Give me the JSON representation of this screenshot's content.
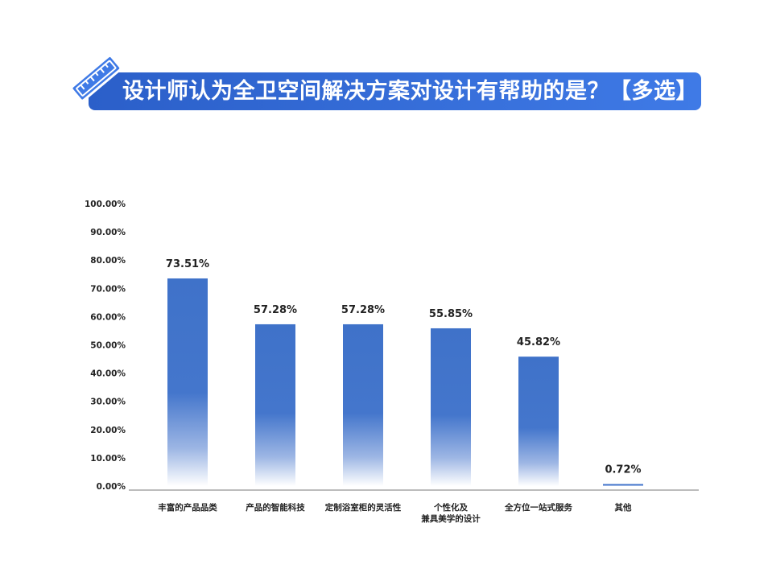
{
  "header": {
    "title": "设计师认为全卫空间解决方案对设计有帮助的是？【多选】",
    "icon": "ruler-icon",
    "accent_color": "#2f66d6"
  },
  "chart_data": {
    "type": "bar",
    "title": "设计师认为全卫空间解决方案对设计有帮助的是？【多选】",
    "categories": [
      [
        "丰富的产品品类"
      ],
      [
        "产品的智能科技"
      ],
      [
        "定制浴室柜的灵活性"
      ],
      [
        "个性化及",
        "兼具美学的设计"
      ],
      [
        "全方位一站式服务"
      ],
      [
        "其他"
      ]
    ],
    "values": [
      73.51,
      57.28,
      57.28,
      55.85,
      45.82,
      0.72
    ],
    "value_labels": [
      "73.51%",
      "57.28%",
      "57.28%",
      "55.85%",
      "45.82%",
      "0.72%"
    ],
    "yticks": [
      "0.00%",
      "10.00%",
      "20.00%",
      "30.00%",
      "40.00%",
      "50.00%",
      "60.00%",
      "70.00%",
      "80.00%",
      "90.00%",
      "100.00%"
    ],
    "ylim": [
      0,
      100
    ],
    "xlabel": "",
    "ylabel": "",
    "grid": false,
    "bar_color": "#3f72c9"
  }
}
